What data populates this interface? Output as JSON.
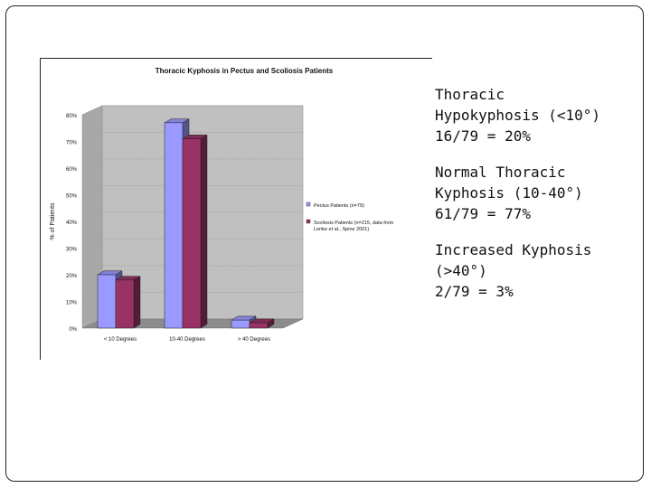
{
  "chart_data": {
    "type": "bar",
    "title": "Thoracic Kyphosis in Pectus and Scoliosis Patients",
    "ylabel": "% of Patients",
    "xlabel": "",
    "categories": [
      "< 10 Degrees",
      "10-40 Degrees",
      "> 40 Degrees"
    ],
    "series": [
      {
        "name": "Pectus Patients (n=79)",
        "color": "#9999ff",
        "values": [
          20,
          77,
          3
        ]
      },
      {
        "name": "Scoliosis Patients (n=215, data from Lenke et al., Spine 2001)",
        "color": "#993366",
        "values": [
          18,
          71,
          2
        ]
      }
    ],
    "ylim": [
      0,
      80
    ],
    "yticks": [
      "0%",
      "10%",
      "20%",
      "30%",
      "40%",
      "50%",
      "60%",
      "70%",
      "80%"
    ],
    "grid": true,
    "legend_position": "right"
  },
  "notes": [
    {
      "lines": [
        "Thoracic",
        "Hypokyphosis (<10°)",
        "16/79 = 20%"
      ]
    },
    {
      "lines": [
        "Normal Thoracic",
        "Kyphosis (10-40°)",
        "61/79 = 77%"
      ]
    },
    {
      "lines": [
        "Increased Kyphosis",
        "(>40°)",
        "2/79 = 3%"
      ]
    }
  ]
}
